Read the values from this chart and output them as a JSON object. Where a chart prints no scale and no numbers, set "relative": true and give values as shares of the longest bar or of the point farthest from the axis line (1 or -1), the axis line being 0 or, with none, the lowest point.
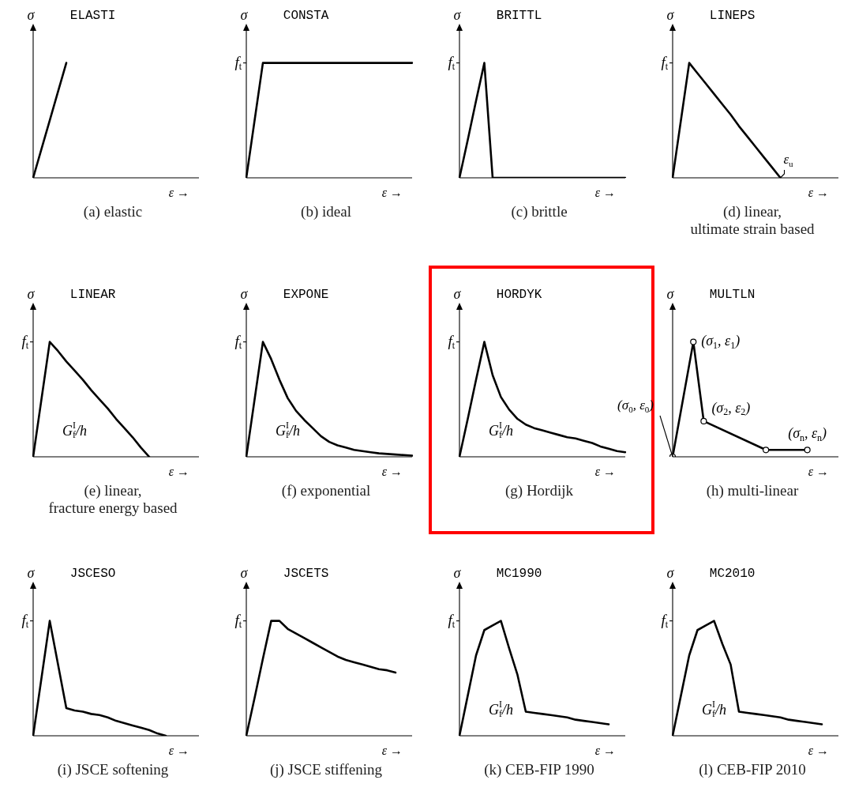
{
  "chart_data": [
    {
      "type": "line",
      "title": "ELASTI",
      "ylabel": "σ",
      "xlabel": "ε →",
      "relative": true,
      "categories": [
        null,
        null,
        null,
        null,
        null,
        null,
        null,
        null,
        null,
        null,
        null,
        null,
        null,
        null,
        null,
        null,
        null,
        null,
        null,
        null,
        null
      ],
      "series": [
        {
          "color": "#000000",
          "values": [
            0,
            0.25,
            0.5,
            0.75,
            1,
            null,
            null,
            null,
            null,
            null,
            null,
            null,
            null,
            null,
            null,
            null,
            null,
            null,
            null,
            null,
            null
          ]
        }
      ],
      "annotations": [
        "(a) elastic"
      ]
    },
    {
      "type": "line",
      "title": "CONSTA",
      "ylabel": "σ",
      "xlabel": "ε →",
      "relative": true,
      "categories": [
        null,
        null,
        null,
        null,
        null,
        null,
        null,
        null,
        null,
        null,
        null,
        null,
        null,
        null,
        null,
        null,
        null,
        null,
        null,
        null,
        null
      ],
      "series": [
        {
          "color": "#000000",
          "values": [
            0,
            0.5,
            1,
            1,
            1,
            1,
            1,
            1,
            1,
            1,
            1,
            1,
            1,
            1,
            1,
            1,
            1,
            1,
            1,
            1,
            1
          ]
        }
      ],
      "annotations": [
        "(b) ideal",
        "f$_{t}$"
      ]
    },
    {
      "type": "line",
      "title": "BRITTL",
      "ylabel": "σ",
      "xlabel": "ε →",
      "relative": true,
      "categories": [
        null,
        null,
        null,
        null,
        null,
        null,
        null,
        null,
        null,
        null,
        null,
        null,
        null,
        null,
        null,
        null,
        null,
        null,
        null,
        null,
        null
      ],
      "series": [
        {
          "color": "#000000",
          "values": [
            0,
            0.33,
            0.67,
            1,
            0,
            0,
            0,
            0,
            0,
            0,
            0,
            0,
            0,
            0,
            0,
            0,
            0,
            0,
            0,
            0,
            0
          ]
        }
      ],
      "annotations": [
        "(c) brittle",
        "f$_{t}$"
      ]
    },
    {
      "type": "line",
      "title": "LINEPS",
      "ylabel": "σ",
      "xlabel": "ε →",
      "relative": true,
      "categories": [
        null,
        null,
        null,
        null,
        null,
        null,
        null,
        null,
        null,
        null,
        null,
        null,
        null,
        null,
        null,
        null,
        null,
        null,
        null,
        null,
        null
      ],
      "series": [
        {
          "color": "#000000",
          "values": [
            0,
            0.5,
            1,
            0.91,
            0.82,
            0.73,
            0.64,
            0.55,
            0.45,
            0.36,
            0.27,
            0.18,
            0.09,
            0,
            null,
            null,
            null,
            null,
            null,
            null,
            null
          ]
        }
      ],
      "annotations": [
        "(d) linear,\nultimate strain based",
        "f$_{t}$",
        "ε$_{u}$"
      ]
    },
    {
      "type": "line",
      "title": "LINEAR",
      "ylabel": "σ",
      "xlabel": "ε →",
      "relative": true,
      "categories": [
        null,
        null,
        null,
        null,
        null,
        null,
        null,
        null,
        null,
        null,
        null,
        null,
        null,
        null,
        null,
        null,
        null,
        null,
        null,
        null,
        null
      ],
      "series": [
        {
          "color": "#000000",
          "values": [
            0,
            0.5,
            1,
            0.92,
            0.83,
            0.75,
            0.67,
            0.58,
            0.5,
            0.42,
            0.33,
            0.25,
            0.17,
            0.08,
            0,
            null,
            null,
            null,
            null,
            null,
            null
          ]
        }
      ],
      "annotations": [
        "(e) linear,\nfracture energy based",
        "f$_{t}$",
        "G$^{I}$$_{f}$/h"
      ]
    },
    {
      "type": "line",
      "title": "EXPONE",
      "ylabel": "σ",
      "xlabel": "ε →",
      "relative": true,
      "categories": [
        null,
        null,
        null,
        null,
        null,
        null,
        null,
        null,
        null,
        null,
        null,
        null,
        null,
        null,
        null,
        null,
        null,
        null,
        null,
        null,
        null
      ],
      "series": [
        {
          "color": "#000000",
          "values": [
            0,
            0.5,
            1,
            0.85,
            0.67,
            0.51,
            0.4,
            0.32,
            0.25,
            0.18,
            0.13,
            0.1,
            0.08,
            0.06,
            0.05,
            0.04,
            0.03,
            0.025,
            0.02,
            0.015,
            0.01
          ]
        }
      ],
      "annotations": [
        "(f) exponential",
        "f$_{t}$",
        "G$^{I}$$_{f}$/h"
      ]
    },
    {
      "type": "line",
      "title": "HORDYK",
      "ylabel": "σ",
      "xlabel": "ε →",
      "relative": true,
      "categories": [
        null,
        null,
        null,
        null,
        null,
        null,
        null,
        null,
        null,
        null,
        null,
        null,
        null,
        null,
        null,
        null,
        null,
        null,
        null,
        null,
        null
      ],
      "series": [
        {
          "color": "#000000",
          "values": [
            0,
            0.33,
            0.67,
            1,
            0.71,
            0.52,
            0.41,
            0.33,
            0.28,
            0.25,
            0.23,
            0.21,
            0.19,
            0.17,
            0.16,
            0.14,
            0.12,
            0.09,
            0.07,
            0.05,
            0.04
          ]
        }
      ],
      "annotations": [
        "(g) Hordijk",
        "f$_{t}$",
        "G$^{I}$$_{f}$/h"
      ]
    },
    {
      "type": "line",
      "title": "MULTLN",
      "ylabel": "σ",
      "xlabel": "ε →",
      "relative": true,
      "marker": "circle",
      "categories": [
        null,
        null,
        null,
        null,
        null,
        null,
        null,
        null,
        null,
        null,
        null,
        null,
        null,
        null,
        null,
        null,
        null
      ],
      "series": [
        {
          "color": "#000000",
          "values": [
            0,
            null,
            1,
            0.31,
            null,
            null,
            null,
            null,
            null,
            0.06,
            null,
            null,
            null,
            0.06,
            null,
            null,
            null
          ]
        }
      ],
      "annotations": [
        "(h) multi-linear",
        "(σ$_{0}$, ε$_{0}$)",
        "(σ$_{1}$, ε$_{1}$)",
        "(σ$_{2}$, ε$_{2}$)",
        "(σ$_{n}$, ε$_{n}$)"
      ]
    },
    {
      "type": "line",
      "title": "JSCESO",
      "ylabel": "σ",
      "xlabel": "ε →",
      "relative": true,
      "categories": [
        null,
        null,
        null,
        null,
        null,
        null,
        null,
        null,
        null,
        null,
        null,
        null,
        null,
        null,
        null,
        null,
        null,
        null,
        null,
        null,
        null
      ],
      "series": [
        {
          "color": "#000000",
          "values": [
            0,
            0.5,
            1,
            0.62,
            0.24,
            0.22,
            0.21,
            0.19,
            0.18,
            0.16,
            0.13,
            0.11,
            0.09,
            0.07,
            0.05,
            0.02,
            0,
            null,
            null,
            null,
            null
          ]
        }
      ],
      "annotations": [
        "(i) JSCE softening",
        "f$_{t}$"
      ]
    },
    {
      "type": "line",
      "title": "JSCETS",
      "ylabel": "σ",
      "xlabel": "ε →",
      "relative": true,
      "categories": [
        null,
        null,
        null,
        null,
        null,
        null,
        null,
        null,
        null,
        null,
        null,
        null,
        null,
        null,
        null,
        null,
        null,
        null,
        null,
        null,
        null
      ],
      "series": [
        {
          "color": "#000000",
          "values": [
            0,
            0.33,
            0.67,
            1,
            1,
            0.93,
            0.89,
            0.85,
            0.81,
            0.77,
            0.73,
            0.69,
            0.66,
            0.64,
            0.62,
            0.6,
            0.58,
            0.57,
            0.55,
            null,
            null
          ]
        }
      ],
      "annotations": [
        "(j) JSCE stiffening",
        "f$_{t}$"
      ]
    },
    {
      "type": "line",
      "title": "MC1990",
      "ylabel": "σ",
      "xlabel": "ε →",
      "relative": true,
      "categories": [
        null,
        null,
        null,
        null,
        null,
        null,
        null,
        null,
        null,
        null,
        null,
        null,
        null,
        null,
        null,
        null,
        null,
        null,
        null,
        null,
        null
      ],
      "series": [
        {
          "color": "#000000",
          "values": [
            0,
            0.35,
            0.7,
            0.92,
            0.96,
            1,
            0.76,
            0.53,
            0.21,
            0.2,
            0.19,
            0.18,
            0.17,
            0.16,
            0.14,
            0.13,
            0.12,
            0.11,
            0.1,
            null,
            null
          ]
        }
      ],
      "annotations": [
        "(k) CEB-FIP 1990",
        "f$_{t}$",
        "G$^{I}$$_{f}$/h"
      ]
    },
    {
      "type": "line",
      "title": "MC2010",
      "ylabel": "σ",
      "xlabel": "ε →",
      "relative": true,
      "categories": [
        null,
        null,
        null,
        null,
        null,
        null,
        null,
        null,
        null,
        null,
        null,
        null,
        null,
        null,
        null,
        null,
        null,
        null,
        null,
        null,
        null
      ],
      "series": [
        {
          "color": "#000000",
          "values": [
            0,
            0.35,
            0.7,
            0.92,
            0.96,
            1,
            0.8,
            0.62,
            0.21,
            0.2,
            0.19,
            0.18,
            0.17,
            0.16,
            0.14,
            0.13,
            0.12,
            0.11,
            0.1,
            null,
            null
          ]
        }
      ],
      "annotations": [
        "(l) CEB-FIP 2010",
        "f$_{t}$",
        "G$^{I}$$_{f}$/h"
      ]
    }
  ]
}
